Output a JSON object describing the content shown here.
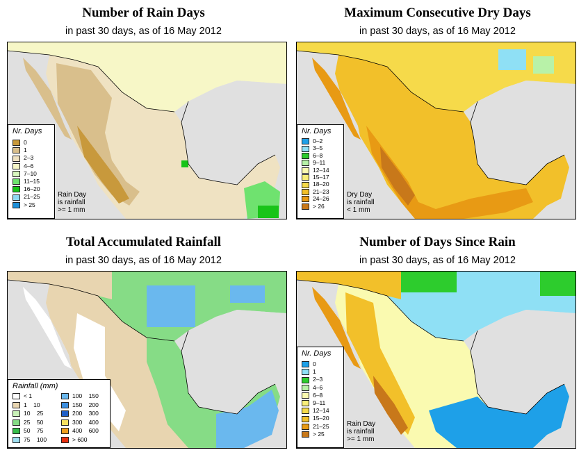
{
  "colors": {
    "land_bg": "#e0e0e0",
    "border": "#000000"
  },
  "panels": [
    {
      "title": "Number of Rain Days",
      "subtitle": "in past 30 days, as of  16 May 2012",
      "legend_title": "Nr. Days",
      "note": [
        "Rain Day",
        "is rainfall",
        ">= 1 mm"
      ],
      "legend": [
        {
          "label": "0",
          "color": "#c8993c"
        },
        {
          "label": "1",
          "color": "#d9bf8c"
        },
        {
          "label": "2–3",
          "color": "#efe2c2"
        },
        {
          "label": "4–6",
          "color": "#f7f7c7"
        },
        {
          "label": "7–10",
          "color": "#d9f7c0"
        },
        {
          "label": "11–15",
          "color": "#6fe26f"
        },
        {
          "label": "16–20",
          "color": "#18c418"
        },
        {
          "label": "21–25",
          "color": "#8fd9f2"
        },
        {
          "label": "> 25",
          "color": "#1e8fd8"
        }
      ]
    },
    {
      "title": "Maximum Consecutive Dry Days",
      "subtitle": "in past 30 days, as of  16 May 2012",
      "legend_title": "Nr. Days",
      "note": [
        "Dry Day",
        "is rainfall",
        "< 1 mm"
      ],
      "legend": [
        {
          "label": "0–2",
          "color": "#1ea0e8"
        },
        {
          "label": "3–5",
          "color": "#8fe0f5"
        },
        {
          "label": "6–8",
          "color": "#2dcc2d"
        },
        {
          "label": "9–11",
          "color": "#b8f2a8"
        },
        {
          "label": "12–14",
          "color": "#fafab0"
        },
        {
          "label": "15–17",
          "color": "#f8ee7a"
        },
        {
          "label": "18–20",
          "color": "#f6da4a"
        },
        {
          "label": "21–23",
          "color": "#f2c02a"
        },
        {
          "label": "24–26",
          "color": "#e89a14"
        },
        {
          "label": "> 26",
          "color": "#c8781a"
        }
      ]
    },
    {
      "title": "Total Accumulated Rainfall",
      "subtitle": "in past 30 days, as of  16 May 2012",
      "legend_title": "Rainfall (mm)",
      "legend_left": [
        {
          "label": "< 1",
          "color": "#ffffff"
        },
        {
          "label": "1    10",
          "color": "#e8d5b0"
        },
        {
          "label": "10    25",
          "color": "#c9f0b8"
        },
        {
          "label": "25    50",
          "color": "#86dc86"
        },
        {
          "label": "50    75",
          "color": "#35bd4a"
        },
        {
          "label": "75    100",
          "color": "#9fe0f2"
        }
      ],
      "legend_right": [
        {
          "label": "100    150",
          "color": "#6ab8ee"
        },
        {
          "label": "150    200",
          "color": "#3c8fe0"
        },
        {
          "label": "200    300",
          "color": "#2060c8"
        },
        {
          "label": "300    400",
          "color": "#f6e060"
        },
        {
          "label": "400    600",
          "color": "#f0a020"
        },
        {
          "label": "> 600",
          "color": "#e83010"
        }
      ]
    },
    {
      "title": "Number of Days Since Rain",
      "subtitle": "in past 30 days, as of  16 May 2012",
      "legend_title": "Nr. Days",
      "note": [
        "Rain Day",
        "is rainfall",
        ">= 1 mm"
      ],
      "legend": [
        {
          "label": "0",
          "color": "#1ea0e8"
        },
        {
          "label": "1",
          "color": "#8fe0f5"
        },
        {
          "label": "2–3",
          "color": "#2dcc2d"
        },
        {
          "label": "4–6",
          "color": "#b8f2a8"
        },
        {
          "label": "6–8",
          "color": "#fafab0"
        },
        {
          "label": "9–11",
          "color": "#f8ee7a"
        },
        {
          "label": "12–14",
          "color": "#f6da4a"
        },
        {
          "label": "15–20",
          "color": "#f2c02a"
        },
        {
          "label": "21–25",
          "color": "#e89a14"
        },
        {
          "label": "> 25",
          "color": "#c8781a"
        }
      ]
    }
  ]
}
